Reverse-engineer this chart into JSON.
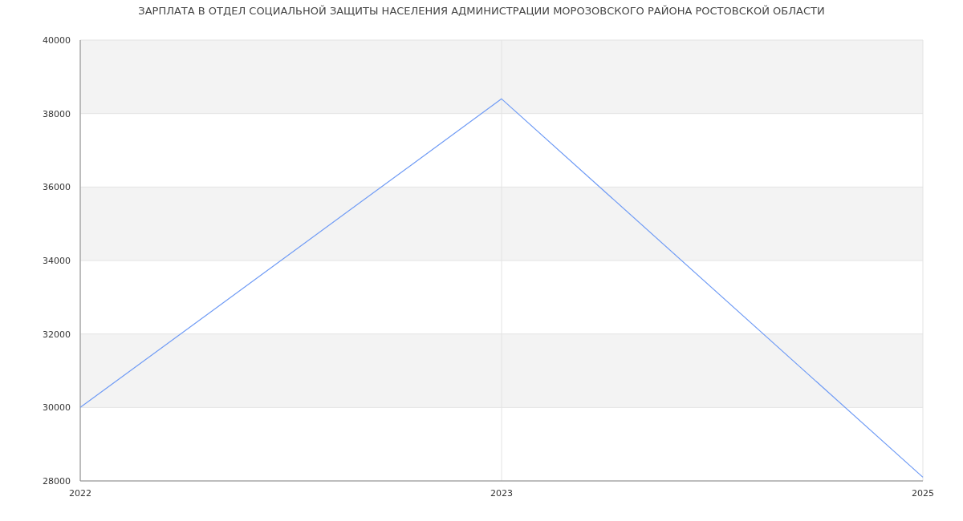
{
  "chart_data": {
    "type": "line",
    "title": "ЗАРПЛАТА В ОТДЕЛ СОЦИАЛЬНОЙ ЗАЩИТЫ НАСЕЛЕНИЯ АДМИНИСТРАЦИИ МОРОЗОВСКОГО РАЙОНА РОСТОВСКОЙ ОБЛАСТИ",
    "categories": [
      "2022",
      "2023",
      "2025"
    ],
    "series": [
      {
        "color": "#6f9bf5",
        "values": [
          30000,
          38400,
          28100
        ]
      }
    ],
    "ylim": [
      28000,
      40000
    ],
    "yticks": [
      28000,
      30000,
      32000,
      34000,
      36000,
      38000,
      40000
    ],
    "bands": [
      {
        "axis": "y",
        "from": 30000,
        "to": 32000,
        "color": "#f3f3f3"
      },
      {
        "axis": "y",
        "from": 34000,
        "to": 36000,
        "color": "#f3f3f3"
      },
      {
        "axis": "y",
        "from": 38000,
        "to": 40000,
        "color": "#f3f3f3"
      }
    ],
    "grid": true,
    "marker": "none",
    "line_style": "solid"
  }
}
